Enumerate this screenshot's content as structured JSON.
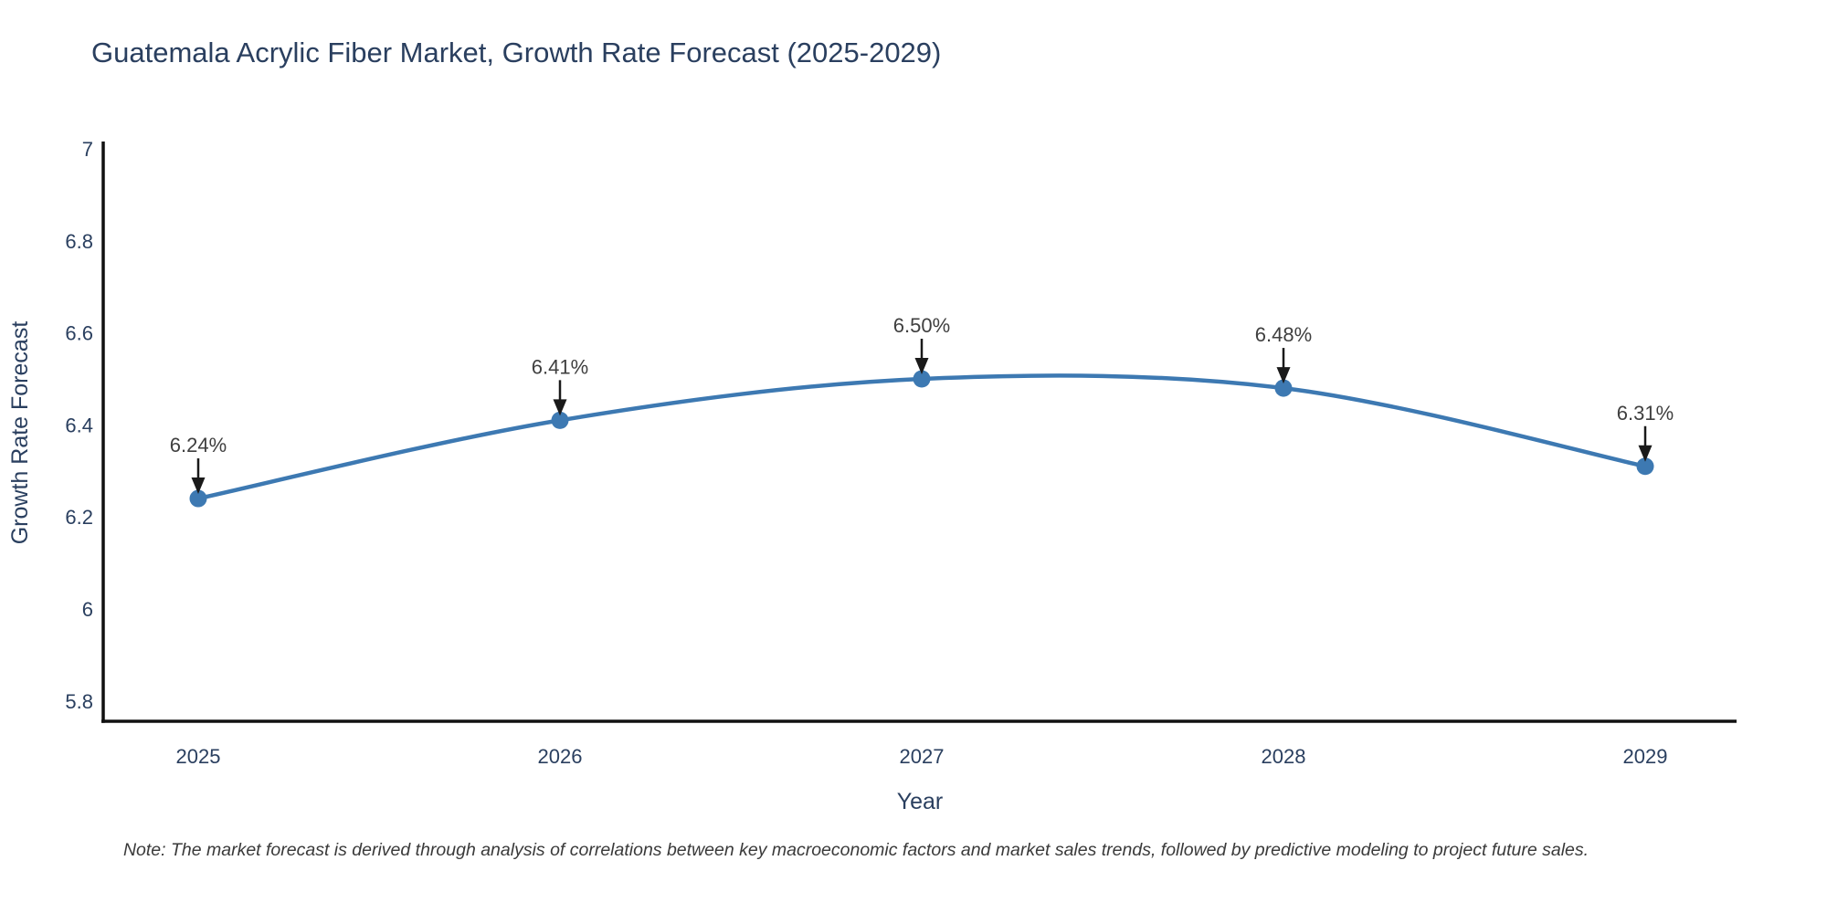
{
  "header": {
    "title": "Guatemala Acrylic Fiber Market, Growth Rate Forecast (2025-2029)"
  },
  "chart_data": {
    "type": "line",
    "title": "Guatemala Acrylic Fiber Market, Growth Rate Forecast (2025-2029)",
    "x": [
      2025,
      2026,
      2027,
      2028,
      2029
    ],
    "x_tick_labels": [
      "2025",
      "2026",
      "2027",
      "2028",
      "2029"
    ],
    "series": [
      {
        "name": "Growth Rate Forecast",
        "values": [
          6.24,
          6.41,
          6.5,
          6.48,
          6.31
        ]
      }
    ],
    "point_labels": [
      "6.24%",
      "6.41%",
      "6.50%",
      "6.48%",
      "6.31%"
    ],
    "xlabel": "Year",
    "ylabel": "Growth Rate Forecast",
    "y_ticks": [
      7,
      6.8,
      6.6,
      6.4,
      6.2,
      6,
      5.8
    ],
    "y_tick_labels": [
      "7",
      "6.8",
      "6.6",
      "6.4",
      "6.2",
      "6",
      "5.8"
    ],
    "ylim": [
      5.75,
      7.0
    ],
    "grid": false,
    "legend": "none",
    "line_shape": "spline",
    "colors": {
      "line": "#3d79b2",
      "marker": "#3d79b2",
      "axis": "#111111",
      "tick_text": "#2a3f5f",
      "annotation_text": "#3f3f3f",
      "arrow": "#1a1a1a"
    }
  },
  "footer": {
    "note": "Note: The market forecast is derived through analysis of correlations between key macroeconomic factors and market sales trends, followed by predictive modeling to project future sales."
  }
}
